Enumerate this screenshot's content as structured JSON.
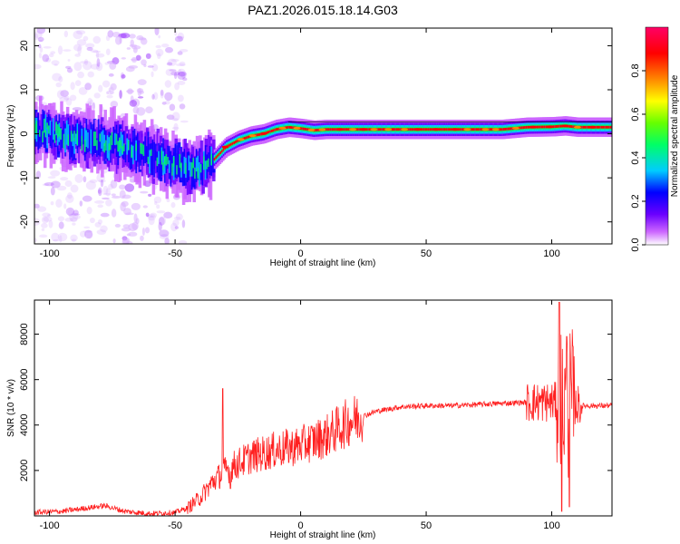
{
  "title": "PAZ1.2026.015.18.14.G03",
  "chart_data": [
    {
      "type": "heatmap",
      "xlabel": "Height of straight line (km)",
      "ylabel": "Frequency (Hz)",
      "xlim": [
        -106,
        124
      ],
      "ylim": [
        -25,
        24
      ],
      "xticks": [
        -100,
        -50,
        0,
        50,
        100
      ],
      "yticks": [
        -20,
        -10,
        0,
        10,
        20
      ],
      "xtick_labels": [
        "-100",
        "-50",
        "0",
        "50",
        "100"
      ],
      "ytick_labels": [
        "-20",
        "-10",
        "0",
        "10",
        "20"
      ],
      "ridge": [
        [
          -106,
          0.5
        ],
        [
          -100,
          0.5
        ],
        [
          -95,
          -0.5
        ],
        [
          -90,
          -1.5
        ],
        [
          -85,
          -1.5
        ],
        [
          -80,
          -2
        ],
        [
          -75,
          -2.5
        ],
        [
          -70,
          -3
        ],
        [
          -65,
          -4
        ],
        [
          -60,
          -5
        ],
        [
          -55,
          -6
        ],
        [
          -50,
          -7
        ],
        [
          -45,
          -8
        ],
        [
          -40,
          -8
        ],
        [
          -35,
          -6
        ],
        [
          -30,
          -3
        ],
        [
          -25,
          -1.5
        ],
        [
          -20,
          -0.5
        ],
        [
          -15,
          0
        ],
        [
          -10,
          1
        ],
        [
          -5,
          1.5
        ],
        [
          0,
          1.2
        ],
        [
          5,
          0.8
        ],
        [
          10,
          1
        ],
        [
          20,
          1
        ],
        [
          30,
          1
        ],
        [
          40,
          1
        ],
        [
          50,
          1
        ],
        [
          60,
          1
        ],
        [
          70,
          1
        ],
        [
          80,
          1
        ],
        [
          90,
          1.5
        ],
        [
          100,
          1.6
        ],
        [
          105,
          1.8
        ],
        [
          110,
          1.5
        ],
        [
          124,
          1.5
        ]
      ],
      "colorbar": {
        "label": "Normalized spectral amplitude",
        "range": [
          0,
          1
        ],
        "ticks": [
          0,
          0.2,
          0.4,
          0.6,
          0.8
        ],
        "tick_labels": [
          "0.0",
          "0.2",
          "0.4",
          "0.6",
          "0.8"
        ],
        "colors": [
          "#ffffff",
          "#cc66ff",
          "#6a00ff",
          "#0000ff",
          "#00ccff",
          "#00ff66",
          "#66ff00",
          "#ffff00",
          "#ff8800",
          "#ff0000",
          "#ff0066"
        ]
      }
    },
    {
      "type": "line",
      "xlabel": "Height of straight line (km)",
      "ylabel": "SNR (10 * v/v)",
      "xlim": [
        -106,
        124
      ],
      "ylim": [
        0,
        9500
      ],
      "xticks": [
        -100,
        -50,
        0,
        50,
        100
      ],
      "yticks": [
        2000,
        4000,
        6000,
        8000
      ],
      "xtick_labels": [
        "-100",
        "-50",
        "0",
        "50",
        "100"
      ],
      "ytick_labels": [
        "2000",
        "4000",
        "6000",
        "8000"
      ],
      "color": "#ff2020",
      "envelope": [
        [
          -106,
          150
        ],
        [
          -95,
          200
        ],
        [
          -85,
          350
        ],
        [
          -78,
          450
        ],
        [
          -70,
          200
        ],
        [
          -60,
          100
        ],
        [
          -50,
          150
        ],
        [
          -45,
          350
        ],
        [
          -40,
          800
        ],
        [
          -35,
          1500
        ],
        [
          -30,
          2000
        ],
        [
          -25,
          2300
        ],
        [
          -20,
          2600
        ],
        [
          -10,
          2900
        ],
        [
          -5,
          3000
        ],
        [
          0,
          3100
        ],
        [
          10,
          3500
        ],
        [
          20,
          4200
        ],
        [
          30,
          4600
        ],
        [
          40,
          4800
        ],
        [
          50,
          4850
        ],
        [
          60,
          4850
        ],
        [
          70,
          4900
        ],
        [
          80,
          4950
        ],
        [
          90,
          5000
        ],
        [
          95,
          5000
        ],
        [
          100,
          5000
        ],
        [
          104,
          5000
        ],
        [
          108,
          4900
        ],
        [
          112,
          4850
        ],
        [
          124,
          4850
        ]
      ],
      "peaks": [
        [
          -31,
          5600
        ],
        [
          -28,
          1200
        ],
        [
          103,
          9400
        ],
        [
          104,
          200
        ],
        [
          106,
          7900
        ],
        [
          107,
          400
        ]
      ]
    }
  ]
}
